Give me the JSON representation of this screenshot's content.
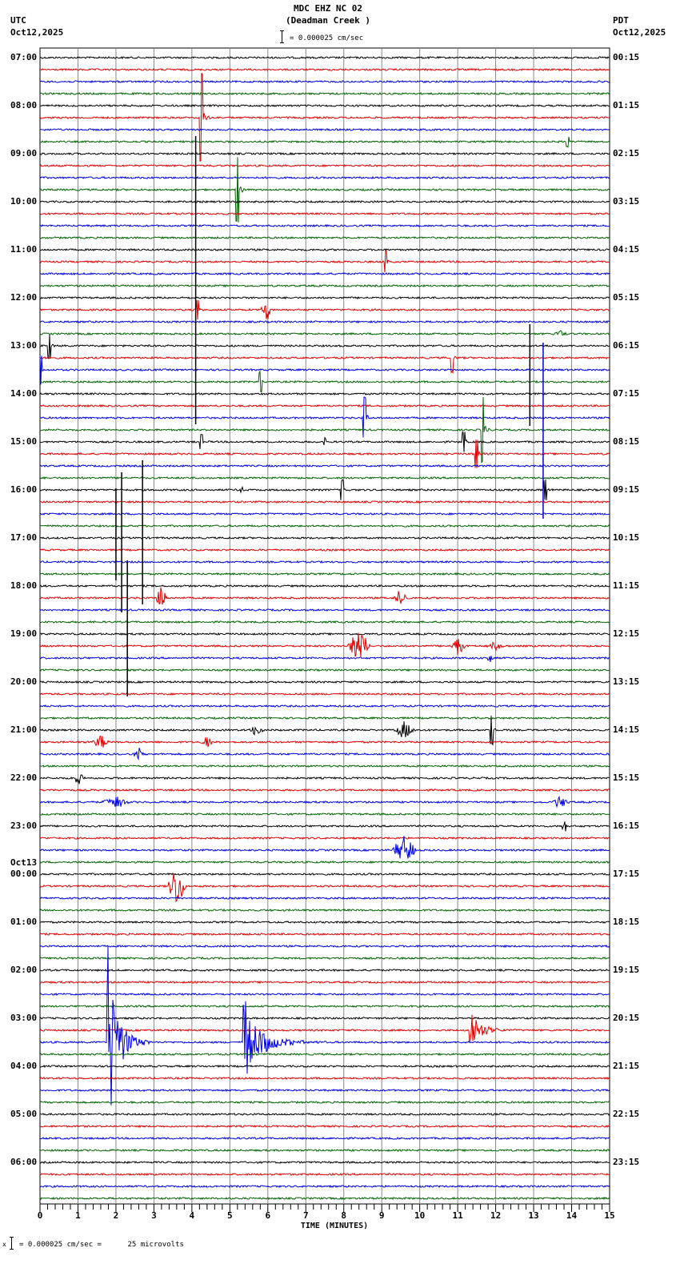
{
  "header": {
    "station": "MDC EHZ NC 02",
    "location": "(Deadman Creek )",
    "scale_text": "= 0.000025 cm/sec",
    "left_tz": "UTC",
    "left_date": "Oct12,2025",
    "right_tz": "PDT",
    "right_date": "Oct12,2025"
  },
  "footer": {
    "scale_prefix": "x",
    "scale_text": "= 0.000025 cm/sec =      25 microvolts"
  },
  "chart_data": {
    "type": "line",
    "title": "MDC EHZ NC 02 (Deadman Creek ) helicorder",
    "xlabel": "TIME (MINUTES)",
    "ylabel": "",
    "xlim": [
      0,
      15
    ],
    "x_ticks": [
      "0",
      "1",
      "2",
      "3",
      "4",
      "5",
      "6",
      "7",
      "8",
      "9",
      "10",
      "11",
      "12",
      "13",
      "14",
      "15"
    ],
    "minor_ticks_per_minute": 4,
    "grid": true,
    "trace_colors": [
      "#000000",
      "#e00000",
      "#0000e0",
      "#006400"
    ],
    "traces_per_hour": 4,
    "trace_count": 96,
    "left_hour_labels": [
      "07:00",
      "08:00",
      "09:00",
      "10:00",
      "11:00",
      "12:00",
      "13:00",
      "14:00",
      "15:00",
      "16:00",
      "17:00",
      "18:00",
      "19:00",
      "20:00",
      "21:00",
      "22:00",
      "23:00",
      "00:00",
      "01:00",
      "02:00",
      "03:00",
      "04:00",
      "05:00",
      "06:00"
    ],
    "date_change_label": {
      "text": "Oct13",
      "before_hour_index": 17
    },
    "right_hour_labels": [
      "00:15",
      "01:15",
      "02:15",
      "03:15",
      "04:15",
      "05:15",
      "06:15",
      "07:15",
      "08:15",
      "09:15",
      "10:15",
      "11:15",
      "12:15",
      "13:15",
      "14:15",
      "15:15",
      "16:15",
      "17:15",
      "18:15",
      "19:15",
      "20:15",
      "21:15",
      "22:15",
      "23:15"
    ],
    "events": [
      {
        "trace": 5,
        "minute": 4.25,
        "amp": 55,
        "dur": 0.3,
        "kind": "spike"
      },
      {
        "trace": 7,
        "minute": 13.9,
        "amp": 6,
        "dur": 0.1,
        "kind": "spike"
      },
      {
        "trace": 11,
        "minute": 5.2,
        "amp": 40,
        "dur": 0.3,
        "kind": "spike"
      },
      {
        "trace": 17,
        "minute": 9.1,
        "amp": 14,
        "dur": 0.2,
        "kind": "spike"
      },
      {
        "trace": 8,
        "minute": 4.1,
        "amp": 340,
        "dur": 0.05,
        "kind": "line",
        "y_from": 170,
        "y_to": 530
      },
      {
        "trace": 21,
        "minute": 4.15,
        "amp": 12,
        "dur": 0.3,
        "kind": "spike"
      },
      {
        "trace": 21,
        "minute": 5.95,
        "amp": 18,
        "dur": 0.3,
        "kind": "burst"
      },
      {
        "trace": 23,
        "minute": 13.7,
        "amp": 5,
        "dur": 0.4,
        "kind": "burst"
      },
      {
        "trace": 24,
        "minute": 0.25,
        "amp": 15,
        "dur": 0.3,
        "kind": "spike"
      },
      {
        "trace": 25,
        "minute": 10.85,
        "amp": 18,
        "dur": 0.2,
        "kind": "spike"
      },
      {
        "trace": 26,
        "minute": 0.02,
        "amp": 18,
        "dur": 0.05,
        "kind": "spike"
      },
      {
        "trace": 27,
        "minute": 5.8,
        "amp": 12,
        "dur": 0.1,
        "kind": "spike"
      },
      {
        "trace": 28,
        "minute": 12.9,
        "amp": 120,
        "dur": 0.05,
        "kind": "line",
        "y_from": 405,
        "y_to": 532
      },
      {
        "trace": 30,
        "minute": 8.55,
        "amp": 25,
        "dur": 0.1,
        "kind": "spike"
      },
      {
        "trace": 32,
        "minute": 4.25,
        "amp": 10,
        "dur": 0.2,
        "kind": "spike"
      },
      {
        "trace": 32,
        "minute": 7.5,
        "amp": 5,
        "dur": 0.1,
        "kind": "spike"
      },
      {
        "trace": 32,
        "minute": 11.15,
        "amp": 12,
        "dur": 0.2,
        "kind": "spike"
      },
      {
        "trace": 33,
        "minute": 11.5,
        "amp": 18,
        "dur": 0.2,
        "kind": "spike"
      },
      {
        "trace": 31,
        "minute": 11.65,
        "amp": 40,
        "dur": 0.2,
        "kind": "spike"
      },
      {
        "trace": 26,
        "minute": 13.25,
        "amp": 200,
        "dur": 0.05,
        "kind": "line",
        "y_from": 428,
        "y_to": 648
      },
      {
        "trace": 36,
        "minute": 7.95,
        "amp": 12,
        "dur": 0.2,
        "kind": "spike"
      },
      {
        "trace": 36,
        "minute": 13.3,
        "amp": 12,
        "dur": 0.3,
        "kind": "spike"
      },
      {
        "trace": 36,
        "minute": 5.3,
        "amp": 4,
        "dur": 0.2,
        "kind": "burst"
      },
      {
        "trace": 40,
        "minute": 2.0,
        "amp": 110,
        "dur": 0.05,
        "kind": "line",
        "y_from": 610,
        "y_to": 725
      },
      {
        "trace": 40,
        "minute": 2.15,
        "amp": 170,
        "dur": 0.05,
        "kind": "line",
        "y_from": 590,
        "y_to": 765
      },
      {
        "trace": 40,
        "minute": 2.7,
        "amp": 190,
        "dur": 0.05,
        "kind": "line",
        "y_from": 575,
        "y_to": 755
      },
      {
        "trace": 40,
        "minute": 2.3,
        "amp": 160,
        "dur": 0.05,
        "kind": "line",
        "y_from": 700,
        "y_to": 870
      },
      {
        "trace": 45,
        "minute": 3.2,
        "amp": 25,
        "dur": 0.3,
        "kind": "burst"
      },
      {
        "trace": 45,
        "minute": 9.5,
        "amp": 12,
        "dur": 0.4,
        "kind": "burst"
      },
      {
        "trace": 49,
        "minute": 8.4,
        "amp": 25,
        "dur": 0.6,
        "kind": "burst"
      },
      {
        "trace": 49,
        "minute": 11.0,
        "amp": 14,
        "dur": 0.4,
        "kind": "burst"
      },
      {
        "trace": 49,
        "minute": 12.0,
        "amp": 6,
        "dur": 0.5,
        "kind": "burst"
      },
      {
        "trace": 50,
        "minute": 11.85,
        "amp": 8,
        "dur": 0.3,
        "kind": "burst"
      },
      {
        "trace": 56,
        "minute": 9.6,
        "amp": 12,
        "dur": 0.6,
        "kind": "burst"
      },
      {
        "trace": 56,
        "minute": 11.9,
        "amp": 18,
        "dur": 0.1,
        "kind": "spike"
      },
      {
        "trace": 56,
        "minute": 5.7,
        "amp": 8,
        "dur": 0.5,
        "kind": "burst"
      },
      {
        "trace": 57,
        "minute": 1.6,
        "amp": 10,
        "dur": 0.5,
        "kind": "burst"
      },
      {
        "trace": 57,
        "minute": 4.4,
        "amp": 8,
        "dur": 0.4,
        "kind": "burst"
      },
      {
        "trace": 58,
        "minute": 2.6,
        "amp": 10,
        "dur": 0.3,
        "kind": "burst"
      },
      {
        "trace": 60,
        "minute": 1.0,
        "amp": 8,
        "dur": 0.4,
        "kind": "burst"
      },
      {
        "trace": 62,
        "minute": 2.0,
        "amp": 8,
        "dur": 0.8,
        "kind": "burst"
      },
      {
        "trace": 62,
        "minute": 13.7,
        "amp": 8,
        "dur": 0.5,
        "kind": "burst"
      },
      {
        "trace": 64,
        "minute": 13.8,
        "amp": 10,
        "dur": 0.2,
        "kind": "burst"
      },
      {
        "trace": 66,
        "minute": 9.6,
        "amp": 20,
        "dur": 0.7,
        "kind": "burst"
      },
      {
        "trace": 69,
        "minute": 3.6,
        "amp": 30,
        "dur": 0.5,
        "kind": "burst"
      },
      {
        "trace": 82,
        "minute": 1.75,
        "amp": 150,
        "dur": 1.3,
        "kind": "quake"
      },
      {
        "trace": 82,
        "minute": 5.35,
        "amp": 60,
        "dur": 2.2,
        "kind": "quake"
      },
      {
        "trace": 81,
        "minute": 11.3,
        "amp": 40,
        "dur": 1.3,
        "kind": "quake"
      }
    ]
  }
}
